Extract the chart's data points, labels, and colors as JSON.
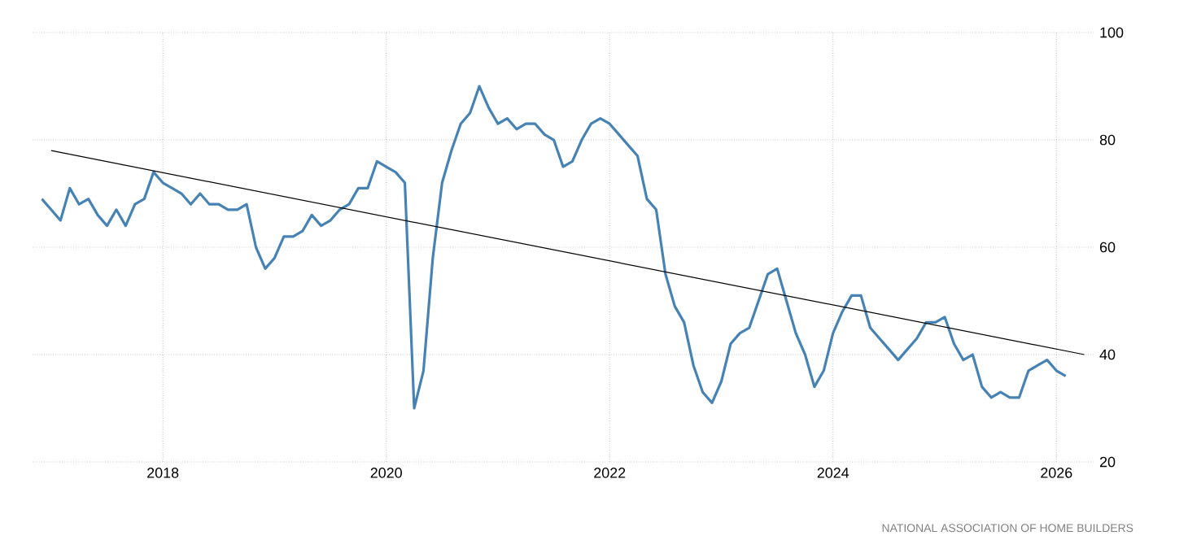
{
  "chart_data": {
    "type": "line",
    "xlim": [
      "2016-11",
      "2026-05"
    ],
    "ylim": [
      20,
      100
    ],
    "xticks": [
      "2018",
      "2020",
      "2022",
      "2024",
      "2026"
    ],
    "yticks": [
      20,
      40,
      60,
      80,
      100
    ],
    "grid": true,
    "annotations": [
      "NATIONAL ASSOCIATION OF HOME BUILDERS"
    ],
    "series": [
      {
        "color": "#4682b4",
        "x": [
          "2016-12",
          "2017-01",
          "2017-02",
          "2017-03",
          "2017-04",
          "2017-05",
          "2017-06",
          "2017-07",
          "2017-08",
          "2017-09",
          "2017-10",
          "2017-11",
          "2017-12",
          "2018-01",
          "2018-02",
          "2018-03",
          "2018-04",
          "2018-05",
          "2018-06",
          "2018-07",
          "2018-08",
          "2018-09",
          "2018-10",
          "2018-11",
          "2018-12",
          "2019-01",
          "2019-02",
          "2019-03",
          "2019-04",
          "2019-05",
          "2019-06",
          "2019-07",
          "2019-08",
          "2019-09",
          "2019-10",
          "2019-11",
          "2019-12",
          "2020-01",
          "2020-02",
          "2020-03",
          "2020-04",
          "2020-05",
          "2020-06",
          "2020-07",
          "2020-08",
          "2020-09",
          "2020-10",
          "2020-11",
          "2020-12",
          "2021-01",
          "2021-02",
          "2021-03",
          "2021-04",
          "2021-05",
          "2021-06",
          "2021-07",
          "2021-08",
          "2021-09",
          "2021-10",
          "2021-11",
          "2021-12",
          "2022-01",
          "2022-02",
          "2022-03",
          "2022-04",
          "2022-05",
          "2022-06",
          "2022-07",
          "2022-08",
          "2022-09",
          "2022-10",
          "2022-11",
          "2022-12",
          "2023-01",
          "2023-02",
          "2023-03",
          "2023-04",
          "2023-05",
          "2023-06",
          "2023-07",
          "2023-08",
          "2023-09",
          "2023-10",
          "2023-11",
          "2023-12",
          "2024-01",
          "2024-02",
          "2024-03",
          "2024-04",
          "2024-05",
          "2024-06",
          "2024-07",
          "2024-08",
          "2024-09",
          "2024-10",
          "2024-11",
          "2024-12",
          "2025-01",
          "2025-02",
          "2025-03",
          "2025-04",
          "2025-05",
          "2025-06",
          "2025-07",
          "2025-08",
          "2025-09",
          "2025-10",
          "2025-11",
          "2025-12",
          "2026-01",
          "2026-02"
        ],
        "values": [
          69,
          67,
          65,
          71,
          68,
          69,
          66,
          64,
          67,
          64,
          68,
          69,
          74,
          72,
          71,
          70,
          68,
          70,
          68,
          68,
          67,
          67,
          68,
          60,
          56,
          58,
          62,
          62,
          63,
          66,
          64,
          65,
          67,
          68,
          71,
          71,
          76,
          75,
          74,
          72,
          30,
          37,
          58,
          72,
          78,
          83,
          85,
          90,
          86,
          83,
          84,
          82,
          83,
          83,
          81,
          80,
          75,
          76,
          80,
          83,
          84,
          83,
          81,
          79,
          77,
          69,
          67,
          55,
          49,
          46,
          38,
          33,
          31,
          35,
          42,
          44,
          45,
          50,
          55,
          56,
          50,
          44,
          40,
          34,
          37,
          44,
          48,
          51,
          51,
          45,
          43,
          41,
          39,
          41,
          43,
          46,
          46,
          47,
          42,
          39,
          40,
          34,
          32,
          33,
          32,
          32,
          37,
          38,
          39,
          37,
          36
        ]
      },
      {
        "color": "#000000",
        "x": [
          "2017-01",
          "2026-04"
        ],
        "values": [
          78,
          40
        ]
      }
    ]
  }
}
